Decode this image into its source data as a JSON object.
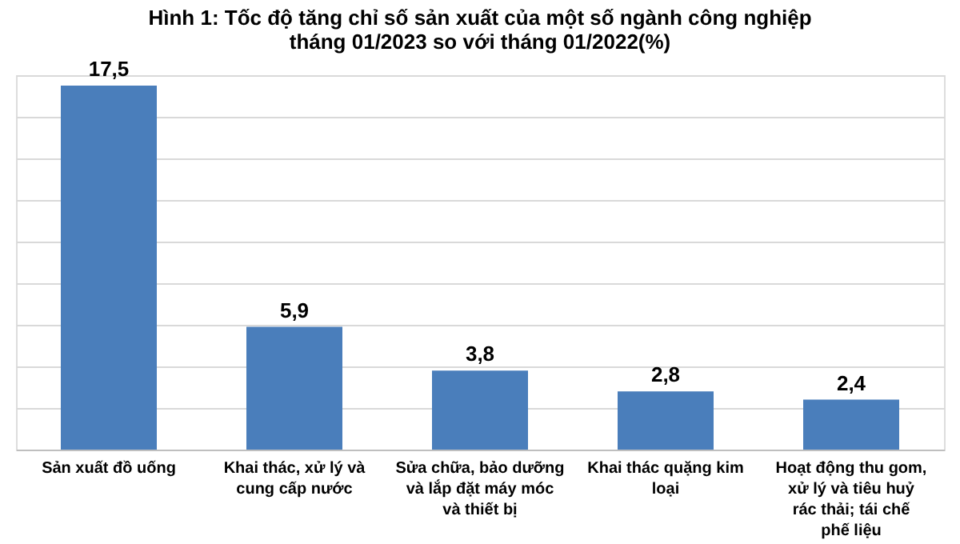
{
  "chart_data": {
    "type": "bar",
    "title": [
      "Hình 1: Tốc độ tăng chỉ số sản xuất của một số ngành công nghiệp",
      "tháng 01/2023 so với tháng 01/2022(%)"
    ],
    "categories": [
      "Sản xuất đồ uống",
      "Khai thác, xử lý và cung cấp nước",
      "Sửa chữa, bảo dưỡng và lắp đặt máy móc và thiết bị",
      "Khai thác quặng kim loại",
      "Hoạt động thu gom, xử lý và tiêu huỷ rác thải; tái chế phế liệu"
    ],
    "values": [
      17.5,
      5.9,
      3.8,
      2.8,
      2.4
    ],
    "value_labels": [
      "17,5",
      "5,9",
      "3,8",
      "2,8",
      "2,4"
    ],
    "color": "#4a7ebb",
    "grid": "y",
    "tick_labels": "x"
  }
}
